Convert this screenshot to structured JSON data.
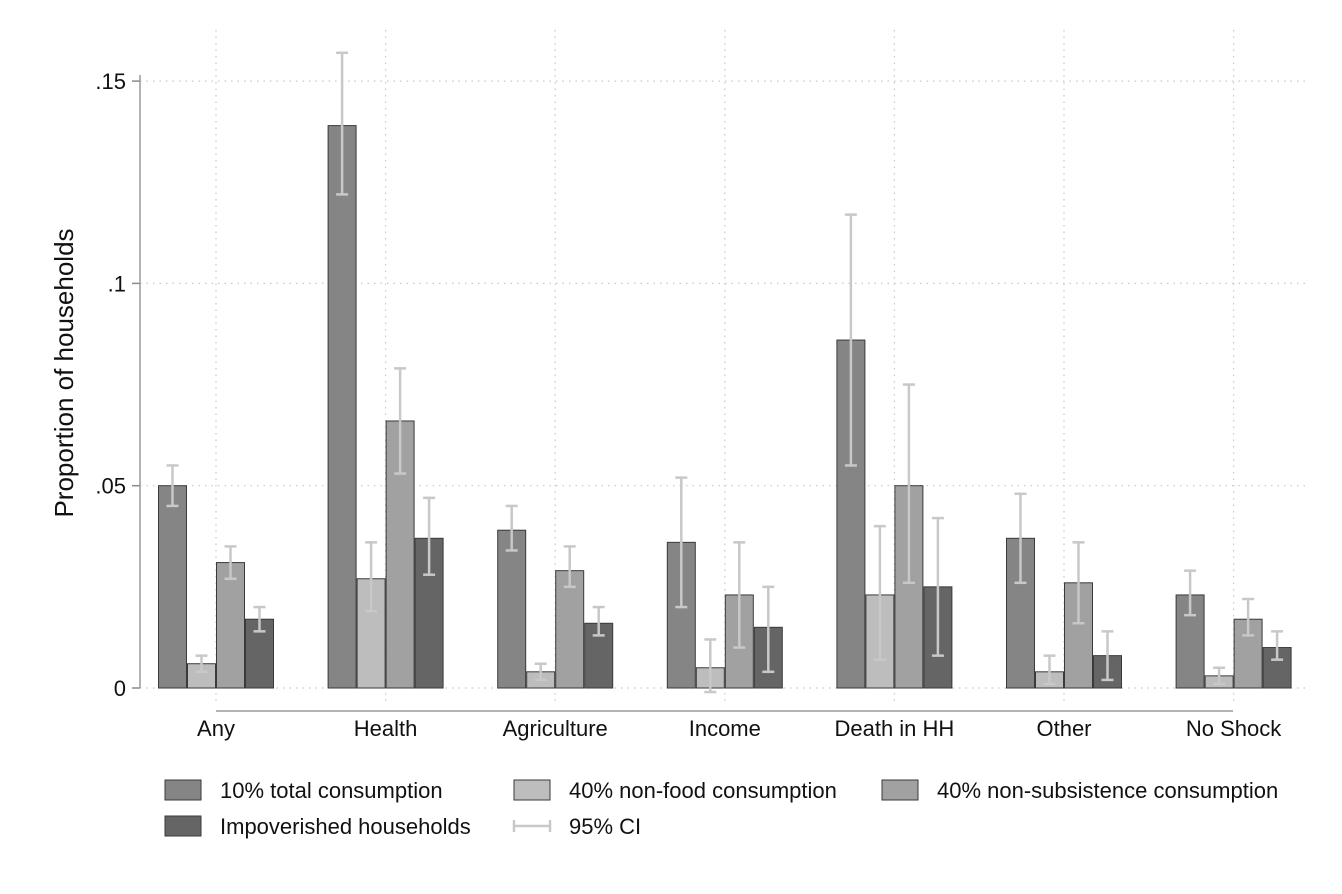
{
  "chart_data": {
    "type": "bar",
    "title": "",
    "xlabel": "",
    "ylabel": "Proportion of households",
    "ylim": [
      0,
      0.155
    ],
    "yticks": [
      {
        "value": 0,
        "label": "0"
      },
      {
        "value": 0.05,
        "label": ".05"
      },
      {
        "value": 0.1,
        "label": ".1"
      },
      {
        "value": 0.15,
        "label": ".15"
      }
    ],
    "grid": true,
    "legend_position": "bottom",
    "categories": [
      "Any",
      "Health",
      "Agriculture",
      "Income",
      "Death in HH",
      "Other",
      "No Shock"
    ],
    "series": [
      {
        "name": "10% total consumption",
        "color": "#858585",
        "values": [
          0.05,
          0.139,
          0.039,
          0.036,
          0.086,
          0.037,
          0.023
        ],
        "ci_low": [
          0.045,
          0.122,
          0.034,
          0.02,
          0.055,
          0.026,
          0.018
        ],
        "ci_high": [
          0.055,
          0.157,
          0.045,
          0.052,
          0.117,
          0.048,
          0.029
        ]
      },
      {
        "name": "40% non-food consumption",
        "color": "#bdbdbd",
        "values": [
          0.006,
          0.027,
          0.004,
          0.005,
          0.023,
          0.004,
          0.003
        ],
        "ci_low": [
          0.004,
          0.019,
          0.002,
          -0.001,
          0.007,
          0.001,
          0.001
        ],
        "ci_high": [
          0.008,
          0.036,
          0.006,
          0.012,
          0.04,
          0.008,
          0.005
        ]
      },
      {
        "name": "40% non-subsistence consumption",
        "color": "#a1a1a1",
        "values": [
          0.031,
          0.066,
          0.029,
          0.023,
          0.05,
          0.026,
          0.017
        ],
        "ci_low": [
          0.027,
          0.053,
          0.025,
          0.01,
          0.026,
          0.016,
          0.013
        ],
        "ci_high": [
          0.035,
          0.079,
          0.035,
          0.036,
          0.075,
          0.036,
          0.022
        ]
      },
      {
        "name": "Impoverished households",
        "color": "#656565",
        "values": [
          0.017,
          0.037,
          0.016,
          0.015,
          0.025,
          0.008,
          0.01
        ],
        "ci_low": [
          0.014,
          0.028,
          0.013,
          0.004,
          0.008,
          0.002,
          0.007
        ],
        "ci_high": [
          0.02,
          0.047,
          0.02,
          0.025,
          0.042,
          0.014,
          0.014
        ]
      }
    ],
    "ci_label": "95% CI",
    "ci_color": "#c8c8c8"
  }
}
